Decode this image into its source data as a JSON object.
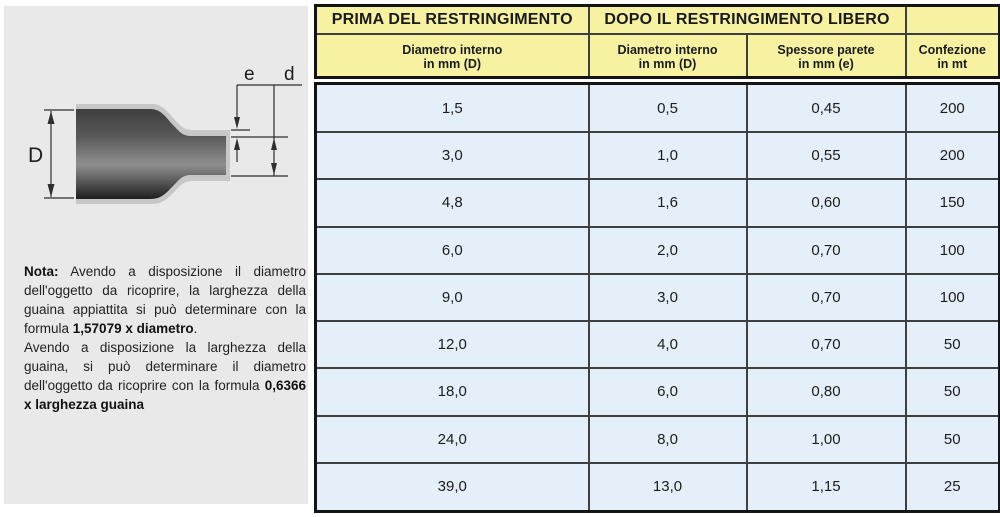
{
  "left_panel": {
    "diagram": {
      "labels": {
        "large_diameter": "D",
        "wall_thickness": "e",
        "small_diameter": "d"
      }
    },
    "note": {
      "paragraphs": [
        [
          {
            "text": "Nota:",
            "bold": true
          },
          {
            "text": " Avendo a disposizione il diametro dell'oggetto da ricoprire, la larghezza della guaina appiattita si può determinare con la formula ",
            "bold": false
          },
          {
            "text": "1,57079 x diametro",
            "bold": true
          },
          {
            "text": ".",
            "bold": false
          }
        ],
        [
          {
            "text": "Avendo a disposizione la larghezza della guaina, si può determinare il diametro dell'oggetto da ricoprire con la formula ",
            "bold": false
          },
          {
            "text": "0,6366 x larghezza guaina",
            "bold": true
          }
        ]
      ]
    }
  },
  "table": {
    "group_headers": [
      "PRIMA DEL RESTRINGIMENTO",
      "DOPO IL RESTRINGIMENTO LIBERO",
      ""
    ],
    "sub_headers": [
      {
        "line1": "Diametro interno",
        "line2": "in mm (D)"
      },
      {
        "line1": "Diametro interno",
        "line2": "in mm (D)"
      },
      {
        "line1": "Spessore parete",
        "line2": "in mm (e)"
      },
      {
        "line1": "Confezione",
        "line2": "in mt"
      }
    ],
    "rows": [
      [
        "1,5",
        "0,5",
        "0,45",
        "200"
      ],
      [
        "3,0",
        "1,0",
        "0,55",
        "200"
      ],
      [
        "4,8",
        "1,6",
        "0,60",
        "150"
      ],
      [
        "6,0",
        "2,0",
        "0,70",
        "100"
      ],
      [
        "9,0",
        "3,0",
        "0,70",
        "100"
      ],
      [
        "12,0",
        "4,0",
        "0,70",
        "50"
      ],
      [
        "18,0",
        "6,0",
        "0,80",
        "50"
      ],
      [
        "24,0",
        "8,0",
        "1,00",
        "50"
      ],
      [
        "39,0",
        "13,0",
        "1,15",
        "25"
      ]
    ]
  },
  "colors": {
    "header_bg": "#f7f2a2",
    "body_bg": "#e5eff9",
    "panel_bg": "#e9e9e9",
    "outer_border": "#141414",
    "grid_line": "#3f3f3f",
    "text": "#1a1a1a"
  }
}
